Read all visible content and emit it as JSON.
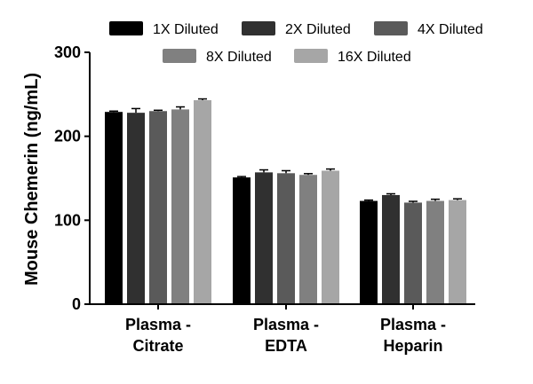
{
  "chart_data": {
    "type": "bar",
    "ylabel": "Mouse Chemerin (ng/mL)",
    "xlabel": "",
    "ylim": [
      0,
      300
    ],
    "yticks": [
      "0",
      "100",
      "200",
      "300"
    ],
    "categories": [
      [
        "Plasma -",
        "Citrate"
      ],
      [
        "Plasma -",
        "EDTA"
      ],
      [
        "Plasma -",
        "Heparin"
      ]
    ],
    "series": [
      {
        "name": "1X Diluted",
        "color": "#000000",
        "values": [
          229,
          151,
          123
        ],
        "errors": [
          1,
          1,
          1
        ]
      },
      {
        "name": "2X Diluted",
        "color": "#303030",
        "values": [
          228,
          157,
          130
        ],
        "errors": [
          5,
          3,
          1.5
        ]
      },
      {
        "name": "4X Diluted",
        "color": "#5a5a5a",
        "values": [
          230,
          156,
          121
        ],
        "errors": [
          1,
          3,
          1.5
        ]
      },
      {
        "name": "8X Diluted",
        "color": "#808080",
        "values": [
          232,
          154,
          123
        ],
        "errors": [
          3,
          1.5,
          2
        ]
      },
      {
        "name": "16X Diluted",
        "color": "#a6a6a6",
        "values": [
          243,
          159,
          124
        ],
        "errors": [
          1.5,
          2,
          1.5
        ]
      }
    ],
    "legend_position": "top",
    "grid": false,
    "error_bars": true
  }
}
